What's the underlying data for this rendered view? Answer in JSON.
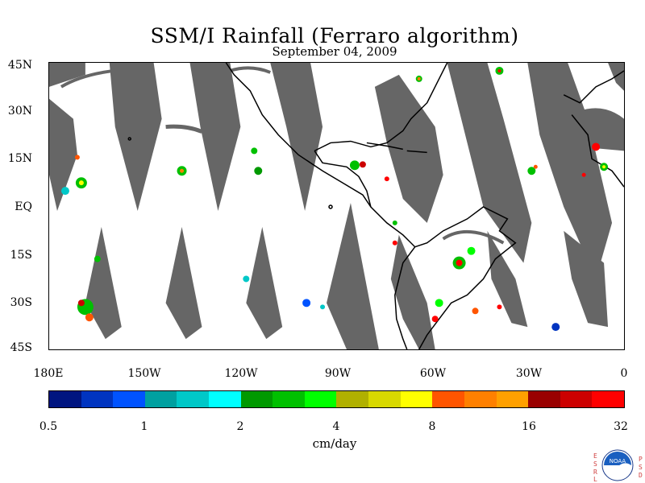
{
  "title": "SSM/I Rainfall (Ferraro algorithm)",
  "subtitle": "September 04, 2009",
  "lat_labels": [
    "45N",
    "30N",
    "15N",
    "EQ",
    "15S",
    "30S",
    "45S"
  ],
  "lon_labels": [
    "180E",
    "150W",
    "120W",
    "90W",
    "60W",
    "30W",
    "0"
  ],
  "colorbar": {
    "colors": [
      "#001580",
      "#0034c0",
      "#0053ff",
      "#00a0a0",
      "#00c8c8",
      "#00ffff",
      "#009900",
      "#00c000",
      "#00ff00",
      "#b0b000",
      "#d8d800",
      "#ffff00",
      "#ff5500",
      "#ff8000",
      "#ffa000",
      "#990000",
      "#cc0000",
      "#ff0000"
    ],
    "tick_labels": [
      "0.5",
      "1",
      "2",
      "4",
      "8",
      "16",
      "32"
    ],
    "unit": "cm/day"
  },
  "logo": {
    "center_text": "NOAA",
    "left_letters": [
      "E",
      "S",
      "R",
      "L"
    ],
    "right_letters": [
      "P",
      "S",
      "D"
    ]
  },
  "map_colors": {
    "land": "#000000",
    "swath_gap": "#666666",
    "background": "#ffffff"
  }
}
